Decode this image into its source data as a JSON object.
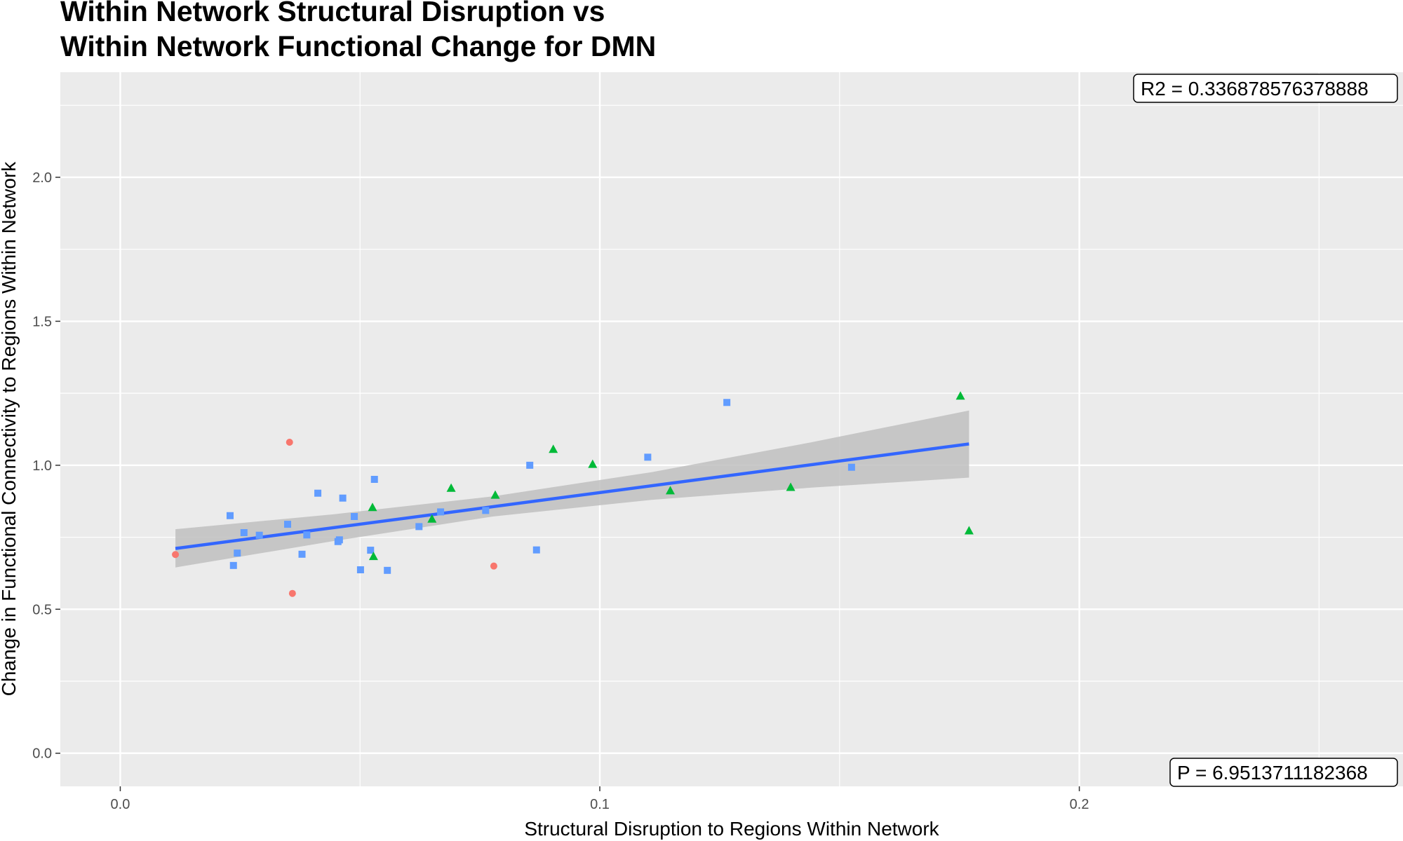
{
  "chart_data": {
    "type": "scatter",
    "title_lines": [
      "Within Network Structural Disruption vs",
      "Within Network Functional Change for DMN"
    ],
    "xlabel": "Structural Disruption to Regions Within Network",
    "ylabel": "Change in Functional Connectivity to Regions Within Network",
    "xlim": [
      -0.0125,
      0.2675
    ],
    "ylim": [
      -0.115,
      2.365
    ],
    "x_ticks": [
      0.0,
      0.1,
      0.2
    ],
    "x_tick_labels": [
      "0.0",
      "0.1",
      "0.2"
    ],
    "y_ticks": [
      0.0,
      0.5,
      1.0,
      1.5,
      2.0
    ],
    "y_tick_labels": [
      "0.0",
      "0.5",
      "1.0",
      "1.5",
      "2.0"
    ],
    "grid": true,
    "background_color": "#ebebeb",
    "grid_color": "#ffffff",
    "series": [
      {
        "color": "#f8766d",
        "shape": "circle",
        "points": [
          [
            0.0115,
            0.69
          ],
          [
            0.0353,
            1.08
          ],
          [
            0.0359,
            0.555
          ],
          [
            0.0779,
            0.65
          ]
        ]
      },
      {
        "color": "#619cff",
        "shape": "square",
        "points": [
          [
            0.0229,
            0.825
          ],
          [
            0.0236,
            0.652
          ],
          [
            0.0244,
            0.695
          ],
          [
            0.0258,
            0.766
          ],
          [
            0.029,
            0.757
          ],
          [
            0.0349,
            0.795
          ],
          [
            0.0379,
            0.691
          ],
          [
            0.0389,
            0.758
          ],
          [
            0.0412,
            0.903
          ],
          [
            0.0454,
            0.735
          ],
          [
            0.0457,
            0.741
          ],
          [
            0.0464,
            0.886
          ],
          [
            0.0488,
            0.822
          ],
          [
            0.0501,
            0.637
          ],
          [
            0.0522,
            0.705
          ],
          [
            0.053,
            0.951
          ],
          [
            0.0557,
            0.635
          ],
          [
            0.0623,
            0.787
          ],
          [
            0.0668,
            0.838
          ],
          [
            0.0762,
            0.843
          ],
          [
            0.0854,
            1.0
          ],
          [
            0.0868,
            0.706
          ],
          [
            0.11,
            1.028
          ],
          [
            0.1265,
            1.218
          ],
          [
            0.1525,
            0.993
          ]
        ]
      },
      {
        "color": "#00ba38",
        "shape": "triangle",
        "points": [
          [
            0.0526,
            0.853
          ],
          [
            0.0528,
            0.683
          ],
          [
            0.065,
            0.813
          ],
          [
            0.069,
            0.92
          ],
          [
            0.0782,
            0.896
          ],
          [
            0.0903,
            1.055
          ],
          [
            0.0985,
            1.003
          ],
          [
            0.1147,
            0.911
          ],
          [
            0.1398,
            0.923
          ],
          [
            0.1752,
            1.24
          ],
          [
            0.177,
            0.772
          ]
        ]
      }
    ],
    "fit_line": {
      "color": "#3366ff",
      "x": [
        0.0115,
        0.177
      ],
      "y": [
        0.711,
        1.074
      ]
    },
    "confidence_band": {
      "color": "#bfbfbf",
      "x": [
        0.0115,
        0.0446,
        0.0777,
        0.1108,
        0.1439,
        0.177
      ],
      "lower": [
        0.645,
        0.737,
        0.822,
        0.88,
        0.922,
        0.957
      ],
      "upper": [
        0.778,
        0.83,
        0.892,
        0.976,
        1.079,
        1.19
      ]
    },
    "annotations": {
      "r2": "R2 =  0.336878576378888",
      "p": "P =  6.9513711182368"
    }
  }
}
